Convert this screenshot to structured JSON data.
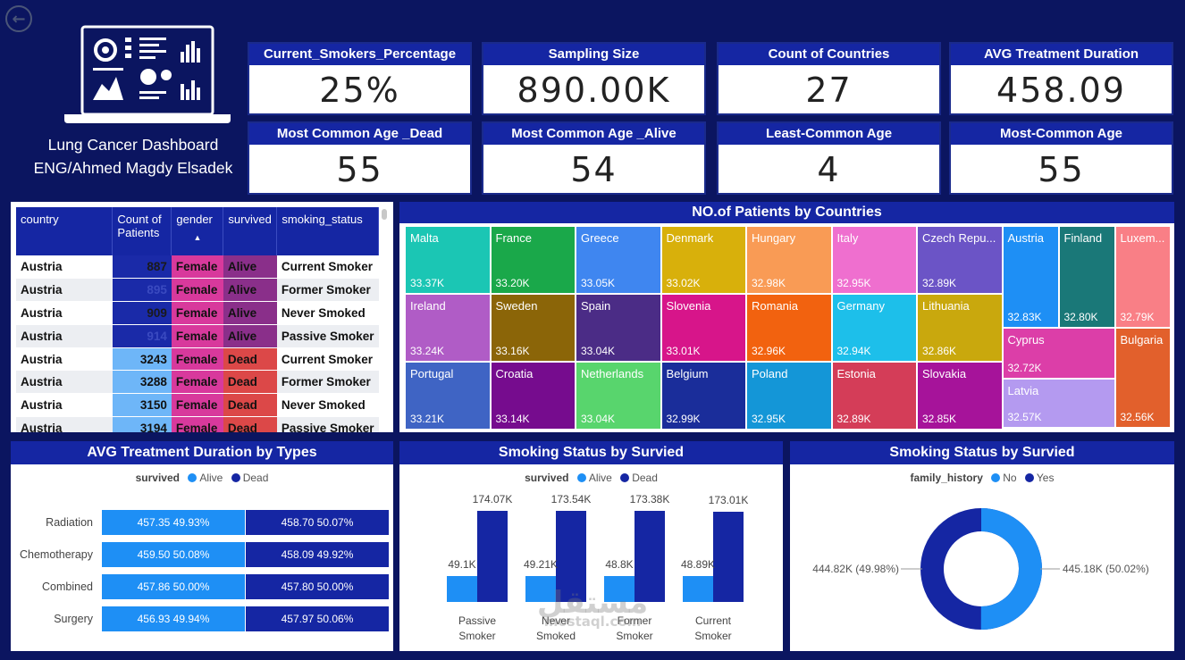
{
  "header": {
    "back_icon": "back-arrow-icon",
    "title_line1": "Lung Cancer Dashboard",
    "title_line2": "ENG/Ahmed Magdy Elsadek"
  },
  "kpis": [
    {
      "label": "Current_Smokers_Percentage",
      "value": "25%"
    },
    {
      "label": "Sampling Size",
      "value": "890.00K"
    },
    {
      "label": "Count of Countries",
      "value": "27"
    },
    {
      "label": "AVG Treatment Duration",
      "value": "458.09"
    },
    {
      "label": "Most Common Age _Dead",
      "value": "55"
    },
    {
      "label": "Most Common Age _Alive",
      "value": "54"
    },
    {
      "label": "Least-Common Age",
      "value": "4"
    },
    {
      "label": "Most-Common Age",
      "value": "55"
    }
  ],
  "patients_table": {
    "columns": [
      "country",
      "Count of Patients",
      "gender",
      "survived",
      "smoking_status"
    ],
    "sort_icon": "sort-ascending-icon",
    "rows": [
      {
        "country": "Austria",
        "count": "887",
        "gender": "Female",
        "survived": "Alive",
        "smoking_status": "Current Smoker"
      },
      {
        "country": "Austria",
        "count": "895",
        "gender": "Female",
        "survived": "Alive",
        "smoking_status": "Former Smoker"
      },
      {
        "country": "Austria",
        "count": "909",
        "gender": "Female",
        "survived": "Alive",
        "smoking_status": "Never Smoked"
      },
      {
        "country": "Austria",
        "count": "914",
        "gender": "Female",
        "survived": "Alive",
        "smoking_status": "Passive Smoker"
      },
      {
        "country": "Austria",
        "count": "3243",
        "gender": "Female",
        "survived": "Dead",
        "smoking_status": "Current Smoker"
      },
      {
        "country": "Austria",
        "count": "3288",
        "gender": "Female",
        "survived": "Dead",
        "smoking_status": "Former Smoker"
      },
      {
        "country": "Austria",
        "count": "3150",
        "gender": "Female",
        "survived": "Dead",
        "smoking_status": "Never Smoked"
      },
      {
        "country": "Austria",
        "count": "3194",
        "gender": "Female",
        "survived": "Dead",
        "smoking_status": "Passive Smoker"
      }
    ]
  },
  "treemap": {
    "title": "NO.of Patients by Countries",
    "tiles": [
      {
        "name": "Malta",
        "value": "33.37K",
        "color": "#1bc6b4"
      },
      {
        "name": "France",
        "value": "33.20K",
        "color": "#1aa84a"
      },
      {
        "name": "Greece",
        "value": "33.05K",
        "color": "#3f86f0"
      },
      {
        "name": "Denmark",
        "value": "33.02K",
        "color": "#d8b00b"
      },
      {
        "name": "Hungary",
        "value": "32.98K",
        "color": "#f99b55"
      },
      {
        "name": "Italy",
        "value": "32.95K",
        "color": "#ef6fcf"
      },
      {
        "name": "Czech Repu...",
        "value": "32.89K",
        "color": "#6b54c6"
      },
      {
        "name": "Ireland",
        "value": "33.24K",
        "color": "#b05cc6"
      },
      {
        "name": "Sweden",
        "value": "33.16K",
        "color": "#8b6508"
      },
      {
        "name": "Spain",
        "value": "33.04K",
        "color": "#4b2c86"
      },
      {
        "name": "Slovenia",
        "value": "33.01K",
        "color": "#d7158a"
      },
      {
        "name": "Romania",
        "value": "32.96K",
        "color": "#f2620f"
      },
      {
        "name": "Germany",
        "value": "32.94K",
        "color": "#1dbfea"
      },
      {
        "name": "Lithuania",
        "value": "32.86K",
        "color": "#c9a80d"
      },
      {
        "name": "Portugal",
        "value": "33.21K",
        "color": "#3f64c4"
      },
      {
        "name": "Croatia",
        "value": "33.14K",
        "color": "#760c8e"
      },
      {
        "name": "Netherlands",
        "value": "33.04K",
        "color": "#58d56d"
      },
      {
        "name": "Belgium",
        "value": "32.99K",
        "color": "#1a2d9a"
      },
      {
        "name": "Poland",
        "value": "32.95K",
        "color": "#1496d7"
      },
      {
        "name": "Estonia",
        "value": "32.89K",
        "color": "#d43d58"
      },
      {
        "name": "Slovakia",
        "value": "32.85K",
        "color": "#a6139a"
      },
      {
        "name": "Austria",
        "value": "32.83K",
        "color": "#1e8ff5"
      },
      {
        "name": "Finland",
        "value": "32.80K",
        "color": "#1a7878"
      },
      {
        "name": "Luxem...",
        "value": "32.79K",
        "color": "#f97f86"
      },
      {
        "name": "Cyprus",
        "value": "32.72K",
        "color": "#dc3ea8"
      },
      {
        "name": "Bulgaria",
        "value": "32.56K",
        "color": "#e2602c"
      },
      {
        "name": "Latvia",
        "value": "32.57K",
        "color": "#b49af0"
      }
    ]
  },
  "treatment_chart": {
    "title": "AVG Treatment Duration by Types",
    "legend_title": "survived",
    "legend": [
      {
        "name": "Alive",
        "color": "#1e8ff5"
      },
      {
        "name": "Dead",
        "color": "#1526a3"
      }
    ],
    "rows": [
      {
        "label": "Radiation",
        "alive": "457.35 49.93%",
        "dead": "458.70 50.07%"
      },
      {
        "label": "Chemotherapy",
        "alive": "459.50 50.08%",
        "dead": "458.09 49.92%"
      },
      {
        "label": "Combined",
        "alive": "457.86 50.00%",
        "dead": "457.80 50.00%"
      },
      {
        "label": "Surgery",
        "alive": "456.93 49.94%",
        "dead": "457.97 50.06%"
      }
    ]
  },
  "smoking_chart": {
    "title": "Smoking Status by Survied",
    "legend_title": "survived",
    "legend": [
      {
        "name": "Alive",
        "color": "#1e8ff5"
      },
      {
        "name": "Dead",
        "color": "#1526a3"
      }
    ],
    "categories": [
      "Passive Smoker",
      "Never Smoked",
      "Former Smoker",
      "Current Smoker"
    ],
    "cat_line1": [
      "Passive",
      "Never",
      "Former",
      "Current"
    ],
    "cat_line2": [
      "Smoker",
      "Smoked",
      "Smoker",
      "Smoker"
    ],
    "alive": [
      49.1,
      49.21,
      48.8,
      48.89
    ],
    "dead": [
      174.07,
      173.54,
      173.38,
      173.01
    ],
    "alive_labels": [
      "49.1K",
      "49.21K",
      "48.8K",
      "48.89K"
    ],
    "dead_labels": [
      "174.07K",
      "173.54K",
      "173.38K",
      "173.01K"
    ]
  },
  "family_chart": {
    "title": "Smoking Status by Survied",
    "legend_title": "family_history",
    "legend": [
      {
        "name": "No",
        "color": "#1e8ff5"
      },
      {
        "name": "Yes",
        "color": "#1526a3"
      }
    ],
    "no_label": "445.18K (50.02%)",
    "yes_label": "444.82K (49.98%)",
    "no_fraction": 0.5002
  },
  "chart_data": [
    {
      "type": "bar",
      "title": "AVG Treatment Duration by Types",
      "categories": [
        "Radiation",
        "Chemotherapy",
        "Combined",
        "Surgery"
      ],
      "series": [
        {
          "name": "Alive",
          "values": [
            457.35,
            459.5,
            457.86,
            456.93
          ]
        },
        {
          "name": "Dead",
          "values": [
            458.7,
            458.09,
            457.8,
            457.97
          ]
        }
      ]
    },
    {
      "type": "bar",
      "title": "Smoking Status by Survied",
      "categories": [
        "Passive Smoker",
        "Never Smoked",
        "Former Smoker",
        "Current Smoker"
      ],
      "series": [
        {
          "name": "Alive",
          "values": [
            49.1,
            49.21,
            48.8,
            48.89
          ]
        },
        {
          "name": "Dead",
          "values": [
            174.07,
            173.54,
            173.38,
            173.01
          ]
        }
      ]
    },
    {
      "type": "pie",
      "title": "Smoking Status by Survied",
      "categories": [
        "No",
        "Yes"
      ],
      "values": [
        445.18,
        444.82
      ]
    }
  ],
  "watermark": {
    "line1": "مستقل",
    "line2": "mostaql.com"
  }
}
